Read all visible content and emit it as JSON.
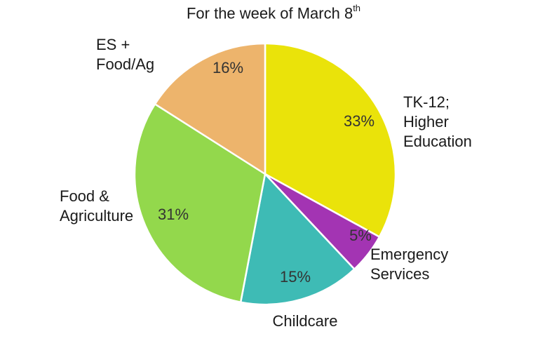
{
  "chart_data": {
    "type": "pie",
    "title": "For the week of March 8",
    "title_superscript": "th",
    "slices": [
      {
        "name": "TK-12;\nHigher\nEducation",
        "value": 33,
        "label": "33%",
        "color": "#EAE30A"
      },
      {
        "name": "Emergency\nServices",
        "value": 5,
        "label": "5%",
        "color": "#A334B3"
      },
      {
        "name": "Childcare",
        "value": 15,
        "label": "15%",
        "color": "#3EBBB5"
      },
      {
        "name": "Food &\nAgriculture",
        "value": 31,
        "label": "31%",
        "color": "#93D84C"
      },
      {
        "name": "ES +\nFood/Ag",
        "value": 16,
        "label": "16%",
        "color": "#EDB46C"
      }
    ],
    "start_angle": "12 o'clock",
    "direction": "clockwise"
  }
}
